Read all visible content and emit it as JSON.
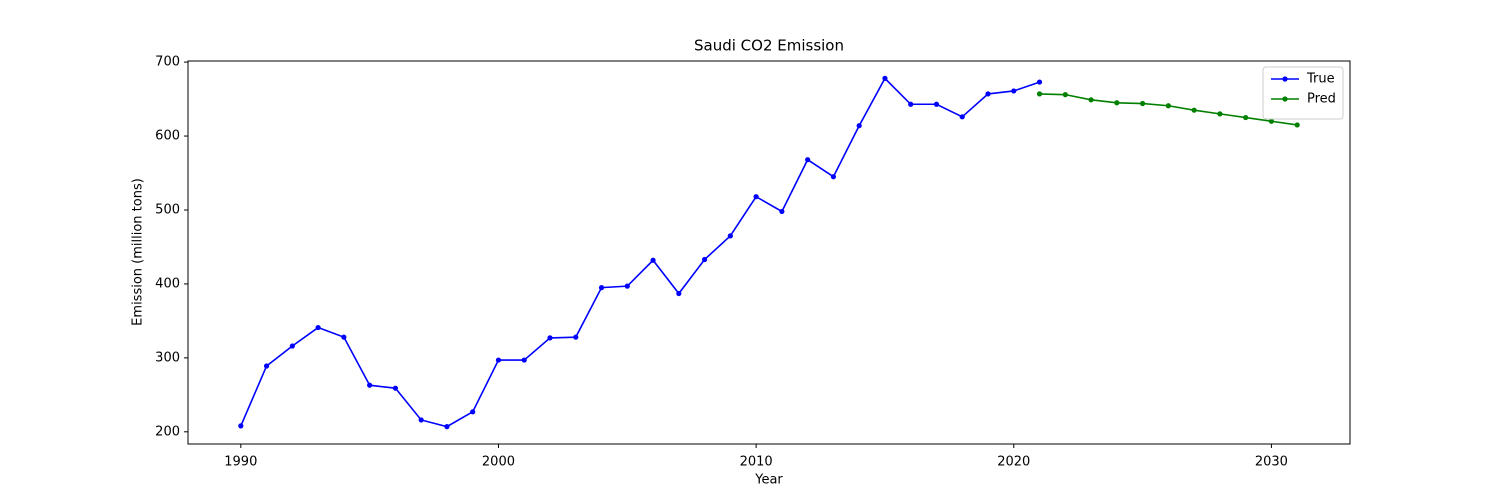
{
  "chart_data": {
    "type": "line",
    "title": "Saudi CO2 Emission",
    "x_label": "Year",
    "y_label": "Emission (million tons)",
    "xlim": [
      1987.95,
      2033.05
    ],
    "xticks": [
      1990,
      2000,
      2010,
      2020,
      2030
    ],
    "ylim": [
      183.5,
      701.5
    ],
    "yticks": [
      200,
      300,
      400,
      500,
      600,
      700
    ],
    "legend": "upper right",
    "series": [
      {
        "name": "True",
        "color": "#0000ff",
        "x": [
          1990,
          1991,
          1992,
          1993,
          1994,
          1995,
          1996,
          1997,
          1998,
          1999,
          2000,
          2001,
          2002,
          2003,
          2004,
          2005,
          2006,
          2007,
          2008,
          2009,
          2010,
          2011,
          2012,
          2013,
          2014,
          2015,
          2016,
          2017,
          2018,
          2019,
          2020,
          2021
        ],
        "values": [
          208,
          289,
          316,
          341,
          328,
          263,
          259,
          216,
          207,
          227,
          297,
          297,
          327,
          328,
          395,
          397,
          432,
          387,
          433,
          465,
          518,
          498,
          568,
          545,
          614,
          678,
          643,
          643,
          626,
          657,
          661,
          673
        ]
      },
      {
        "name": "Pred",
        "color": "#008000",
        "x": [
          2021,
          2022,
          2023,
          2024,
          2025,
          2026,
          2027,
          2028,
          2029,
          2030,
          2031
        ],
        "values": [
          657,
          656,
          649,
          645,
          644,
          641,
          635,
          630,
          625,
          620,
          615
        ]
      }
    ]
  }
}
